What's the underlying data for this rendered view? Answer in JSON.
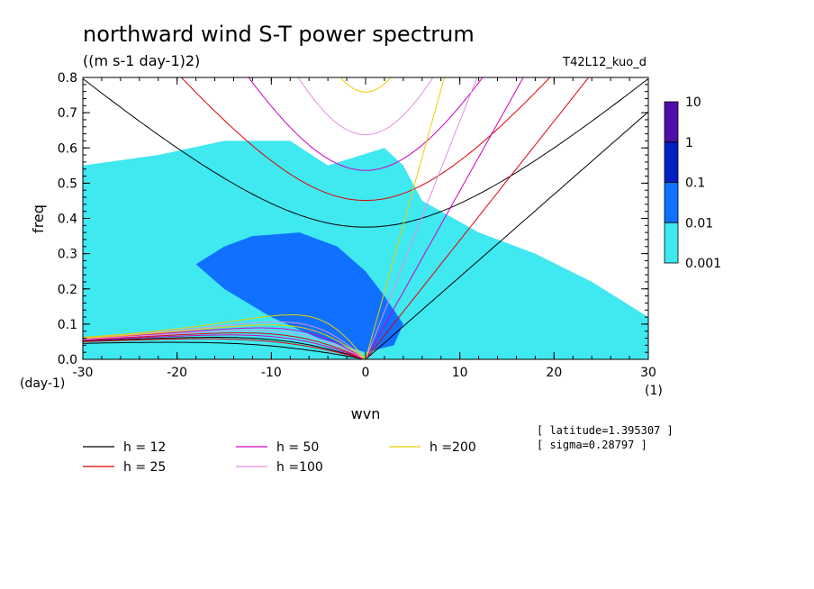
{
  "header": {
    "title": "northward wind S-T power spectrum",
    "units": "((m s-1 day-1)2)",
    "run_name": "T42L12_kuo_d"
  },
  "info": {
    "latitude": "[ latitude=1.395307 ]",
    "sigma": "[ sigma=0.28797 ]"
  },
  "chart_data": {
    "type": "heatmap",
    "title": "northward wind S-T power spectrum",
    "subtitle": "((m s-1 day-1)2)",
    "xlabel": "wvn",
    "ylabel": "freq",
    "x_unit_label": "(1)",
    "y_unit_label": "(day-1)",
    "xlim": [
      -30,
      30
    ],
    "ylim": [
      0,
      0.8
    ],
    "x_ticks": [
      -30,
      -20,
      -10,
      0,
      10,
      20,
      30
    ],
    "y_ticks": [
      0.0,
      0.1,
      0.2,
      0.3,
      0.4,
      0.5,
      0.6,
      0.7,
      0.8
    ],
    "x_tick_labels": [
      "-30",
      "-20",
      "-10",
      "0",
      "10",
      "20",
      "30"
    ],
    "y_tick_labels": [
      "0.0",
      "0.1",
      "0.2",
      "0.3",
      "0.4",
      "0.5",
      "0.6",
      "0.7",
      "0.8"
    ],
    "colorbar": {
      "labels": [
        "10",
        "1",
        "0.1",
        "0.01",
        "0.001"
      ],
      "levels": [
        0.001,
        0.01,
        0.1,
        1,
        10
      ],
      "colors": [
        "#40e8f0",
        "#1070ff",
        "#0020c0",
        "#5010a8"
      ]
    },
    "power_regions": [
      {
        "level": 0.001,
        "color": "#40e8f0",
        "description_shape": [
          [
            -30,
            0.05
          ],
          [
            -30,
            0.55
          ],
          [
            -22,
            0.58
          ],
          [
            -15,
            0.62
          ],
          [
            -8,
            0.62
          ],
          [
            -4,
            0.55
          ],
          [
            2,
            0.6
          ],
          [
            4,
            0.55
          ],
          [
            6,
            0.45
          ],
          [
            12,
            0.36
          ],
          [
            18,
            0.3
          ],
          [
            24,
            0.22
          ],
          [
            30,
            0.12
          ],
          [
            30,
            0.0
          ],
          [
            0,
            0.0
          ],
          [
            -30,
            0.0
          ]
        ]
      },
      {
        "level": 0.01,
        "color": "#1070ff",
        "description_shape": [
          [
            -15,
            0.32
          ],
          [
            -12,
            0.35
          ],
          [
            -7,
            0.36
          ],
          [
            -3,
            0.32
          ],
          [
            0,
            0.25
          ],
          [
            2,
            0.18
          ],
          [
            4,
            0.1
          ],
          [
            3,
            0.04
          ],
          [
            0,
            0.02
          ],
          [
            -5,
            0.06
          ],
          [
            -10,
            0.12
          ],
          [
            -15,
            0.2
          ],
          [
            -18,
            0.27
          ]
        ]
      }
    ],
    "dispersion_curves": [
      {
        "name": "h = 12",
        "h": 12,
        "color": "#000000"
      },
      {
        "name": "h = 25",
        "h": 25,
        "color": "#e00000"
      },
      {
        "name": "h = 50",
        "h": 50,
        "color": "#d000c0"
      },
      {
        "name": "h =100",
        "h": 100,
        "color": "#e090e0"
      },
      {
        "name": "h =200",
        "h": 200,
        "color": "#e8d000"
      }
    ],
    "grid": false,
    "legend_placement": "bottom"
  }
}
